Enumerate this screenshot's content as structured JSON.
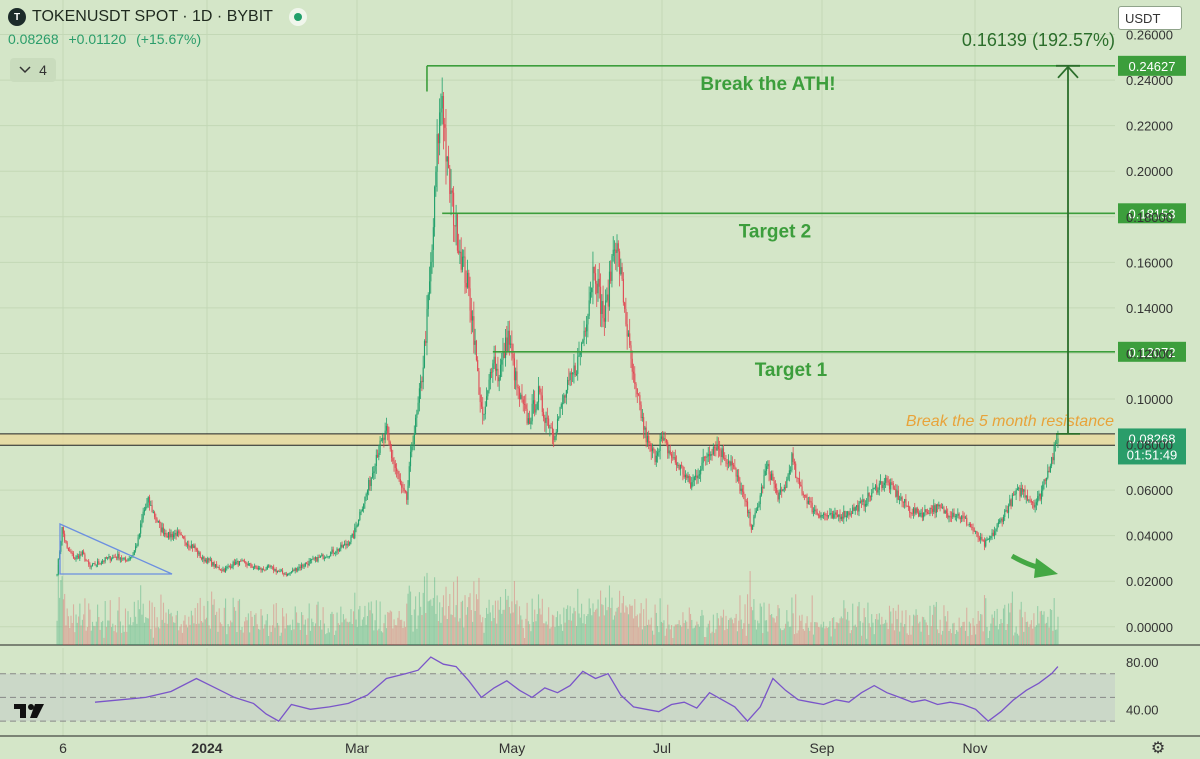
{
  "header": {
    "title": "TOKENUSDT SPOT · 1D · BYBIT",
    "logo_icon": "token-logo-icon",
    "price": "0.08268",
    "change": "+0.01120",
    "change_pct": "(+15.67%)",
    "indicator_count": "4",
    "indicator_toggle_icon": "chevron-down-icon"
  },
  "currency_select": "USDT",
  "colors": {
    "up": "#22a06b",
    "down": "#e04a55",
    "annotation": "#3c9e3c",
    "resistance": "#e8a33a",
    "background": "#d4e6c8"
  },
  "chart_data": {
    "type": "candlestick",
    "x_tick_labels": [
      "6",
      "2024",
      "Mar",
      "May",
      "Jul",
      "Sep",
      "Nov"
    ],
    "y_tick_labels": [
      "0.00000",
      "0.02000",
      "0.04000",
      "0.06000",
      "0.08000",
      "0.10000",
      "0.12000",
      "0.14000",
      "0.16000",
      "0.18000",
      "0.20000",
      "0.22000",
      "0.24000",
      "0.26000"
    ],
    "ylim": [
      -0.008,
      0.262
    ],
    "last_price": 0.08268,
    "last_price_label": "0.08268",
    "countdown_label": "01:51:49",
    "levels": [
      {
        "value": 0.24627,
        "label": "0.24627",
        "text": "Break the ATH!"
      },
      {
        "value": 0.18153,
        "label": "0.18153",
        "text": "Target 2"
      },
      {
        "value": 0.12072,
        "label": "0.12072",
        "text": "Target 1"
      }
    ],
    "resistance_zone": {
      "low": 0.0797,
      "high": 0.0847,
      "text": "Break the 5 month resistance"
    },
    "projection_label": "0.16139 (192.57%)",
    "price_path": [
      [
        0,
        0.024
      ],
      [
        4,
        0.043
      ],
      [
        8,
        0.034
      ],
      [
        14,
        0.03
      ],
      [
        20,
        0.032
      ],
      [
        26,
        0.026
      ],
      [
        32,
        0.028
      ],
      [
        40,
        0.03
      ],
      [
        48,
        0.031
      ],
      [
        54,
        0.029
      ],
      [
        60,
        0.032
      ],
      [
        64,
        0.038
      ],
      [
        68,
        0.05
      ],
      [
        72,
        0.055
      ],
      [
        76,
        0.05
      ],
      [
        82,
        0.043
      ],
      [
        88,
        0.04
      ],
      [
        94,
        0.041
      ],
      [
        100,
        0.038
      ],
      [
        108,
        0.035
      ],
      [
        114,
        0.03
      ],
      [
        120,
        0.029
      ],
      [
        126,
        0.026
      ],
      [
        132,
        0.025
      ],
      [
        140,
        0.028
      ],
      [
        148,
        0.028
      ],
      [
        156,
        0.026
      ],
      [
        162,
        0.025
      ],
      [
        168,
        0.026
      ],
      [
        176,
        0.024
      ],
      [
        182,
        0.023
      ],
      [
        190,
        0.026
      ],
      [
        198,
        0.028
      ],
      [
        206,
        0.03
      ],
      [
        214,
        0.032
      ],
      [
        222,
        0.034
      ],
      [
        228,
        0.036
      ],
      [
        234,
        0.04
      ],
      [
        240,
        0.052
      ],
      [
        244,
        0.058
      ],
      [
        248,
        0.066
      ],
      [
        252,
        0.076
      ],
      [
        256,
        0.08
      ],
      [
        260,
        0.085
      ],
      [
        264,
        0.075
      ],
      [
        268,
        0.068
      ],
      [
        272,
        0.06
      ],
      [
        276,
        0.056
      ],
      [
        280,
        0.08
      ],
      [
        284,
        0.092
      ],
      [
        288,
        0.11
      ],
      [
        292,
        0.135
      ],
      [
        296,
        0.165
      ],
      [
        300,
        0.21
      ],
      [
        304,
        0.235
      ],
      [
        308,
        0.2
      ],
      [
        312,
        0.185
      ],
      [
        316,
        0.172
      ],
      [
        320,
        0.16
      ],
      [
        324,
        0.15
      ],
      [
        328,
        0.135
      ],
      [
        332,
        0.11
      ],
      [
        336,
        0.09
      ],
      [
        340,
        0.102
      ],
      [
        344,
        0.12
      ],
      [
        348,
        0.11
      ],
      [
        352,
        0.118
      ],
      [
        356,
        0.128
      ],
      [
        360,
        0.115
      ],
      [
        364,
        0.102
      ],
      [
        368,
        0.096
      ],
      [
        372,
        0.09
      ],
      [
        376,
        0.096
      ],
      [
        380,
        0.102
      ],
      [
        384,
        0.094
      ],
      [
        388,
        0.09
      ],
      [
        392,
        0.085
      ],
      [
        396,
        0.092
      ],
      [
        400,
        0.1
      ],
      [
        404,
        0.106
      ],
      [
        408,
        0.112
      ],
      [
        412,
        0.118
      ],
      [
        416,
        0.13
      ],
      [
        420,
        0.145
      ],
      [
        424,
        0.16
      ],
      [
        428,
        0.145
      ],
      [
        432,
        0.135
      ],
      [
        436,
        0.15
      ],
      [
        440,
        0.172
      ],
      [
        444,
        0.158
      ],
      [
        448,
        0.14
      ],
      [
        452,
        0.12
      ],
      [
        456,
        0.104
      ],
      [
        460,
        0.096
      ],
      [
        464,
        0.085
      ],
      [
        468,
        0.078
      ],
      [
        472,
        0.075
      ],
      [
        476,
        0.082
      ],
      [
        480,
        0.08
      ],
      [
        484,
        0.076
      ],
      [
        488,
        0.072
      ],
      [
        492,
        0.07
      ],
      [
        496,
        0.066
      ],
      [
        500,
        0.062
      ],
      [
        504,
        0.066
      ],
      [
        508,
        0.07
      ],
      [
        512,
        0.075
      ],
      [
        516,
        0.078
      ],
      [
        520,
        0.08
      ],
      [
        524,
        0.077
      ],
      [
        528,
        0.074
      ],
      [
        532,
        0.072
      ],
      [
        536,
        0.066
      ],
      [
        540,
        0.06
      ],
      [
        544,
        0.053
      ],
      [
        548,
        0.044
      ],
      [
        552,
        0.05
      ],
      [
        556,
        0.06
      ],
      [
        560,
        0.07
      ],
      [
        564,
        0.066
      ],
      [
        568,
        0.058
      ],
      [
        572,
        0.058
      ],
      [
        576,
        0.064
      ],
      [
        580,
        0.074
      ],
      [
        584,
        0.064
      ],
      [
        588,
        0.06
      ],
      [
        592,
        0.056
      ],
      [
        596,
        0.052
      ],
      [
        600,
        0.05
      ],
      [
        606,
        0.049
      ],
      [
        612,
        0.048
      ],
      [
        618,
        0.049
      ],
      [
        624,
        0.05
      ],
      [
        630,
        0.052
      ],
      [
        636,
        0.054
      ],
      [
        642,
        0.058
      ],
      [
        648,
        0.062
      ],
      [
        654,
        0.064
      ],
      [
        660,
        0.06
      ],
      [
        666,
        0.056
      ],
      [
        672,
        0.052
      ],
      [
        678,
        0.05
      ],
      [
        684,
        0.05
      ],
      [
        690,
        0.052
      ],
      [
        696,
        0.052
      ],
      [
        702,
        0.05
      ],
      [
        708,
        0.05
      ],
      [
        714,
        0.048
      ],
      [
        720,
        0.045
      ],
      [
        726,
        0.04
      ],
      [
        732,
        0.036
      ],
      [
        738,
        0.04
      ],
      [
        744,
        0.046
      ],
      [
        750,
        0.052
      ],
      [
        756,
        0.058
      ],
      [
        762,
        0.06
      ],
      [
        768,
        0.056
      ],
      [
        772,
        0.054
      ],
      [
        776,
        0.058
      ],
      [
        780,
        0.066
      ],
      [
        784,
        0.072
      ],
      [
        788,
        0.078
      ],
      [
        790,
        0.08268
      ]
    ],
    "rsi": {
      "y_tick_labels": [
        "80.00",
        "40.00"
      ],
      "ylim": [
        20,
        90
      ],
      "upper": 70,
      "mid": 50,
      "lower": 30,
      "path": [
        [
          30,
          46
        ],
        [
          50,
          48
        ],
        [
          70,
          50
        ],
        [
          90,
          55
        ],
        [
          110,
          66
        ],
        [
          125,
          58
        ],
        [
          140,
          50
        ],
        [
          155,
          45
        ],
        [
          165,
          36
        ],
        [
          175,
          30
        ],
        [
          185,
          44
        ],
        [
          200,
          40
        ],
        [
          215,
          42
        ],
        [
          230,
          45
        ],
        [
          245,
          52
        ],
        [
          260,
          66
        ],
        [
          275,
          70
        ],
        [
          285,
          73
        ],
        [
          295,
          84
        ],
        [
          305,
          78
        ],
        [
          315,
          76
        ],
        [
          325,
          64
        ],
        [
          335,
          50
        ],
        [
          345,
          58
        ],
        [
          355,
          64
        ],
        [
          365,
          56
        ],
        [
          375,
          50
        ],
        [
          385,
          58
        ],
        [
          395,
          54
        ],
        [
          405,
          60
        ],
        [
          415,
          72
        ],
        [
          425,
          66
        ],
        [
          435,
          70
        ],
        [
          445,
          52
        ],
        [
          455,
          42
        ],
        [
          465,
          40
        ],
        [
          475,
          38
        ],
        [
          485,
          44
        ],
        [
          495,
          46
        ],
        [
          505,
          41
        ],
        [
          515,
          54
        ],
        [
          525,
          48
        ],
        [
          535,
          42
        ],
        [
          545,
          30
        ],
        [
          555,
          42
        ],
        [
          565,
          66
        ],
        [
          575,
          56
        ],
        [
          585,
          48
        ],
        [
          595,
          46
        ],
        [
          605,
          44
        ],
        [
          615,
          48
        ],
        [
          625,
          46
        ],
        [
          635,
          54
        ],
        [
          645,
          60
        ],
        [
          655,
          54
        ],
        [
          665,
          50
        ],
        [
          675,
          46
        ],
        [
          685,
          48
        ],
        [
          695,
          44
        ],
        [
          705,
          46
        ],
        [
          715,
          44
        ],
        [
          725,
          40
        ],
        [
          735,
          30
        ],
        [
          745,
          38
        ],
        [
          755,
          48
        ],
        [
          765,
          56
        ],
        [
          775,
          62
        ],
        [
          785,
          70
        ],
        [
          790,
          76
        ]
      ]
    }
  }
}
